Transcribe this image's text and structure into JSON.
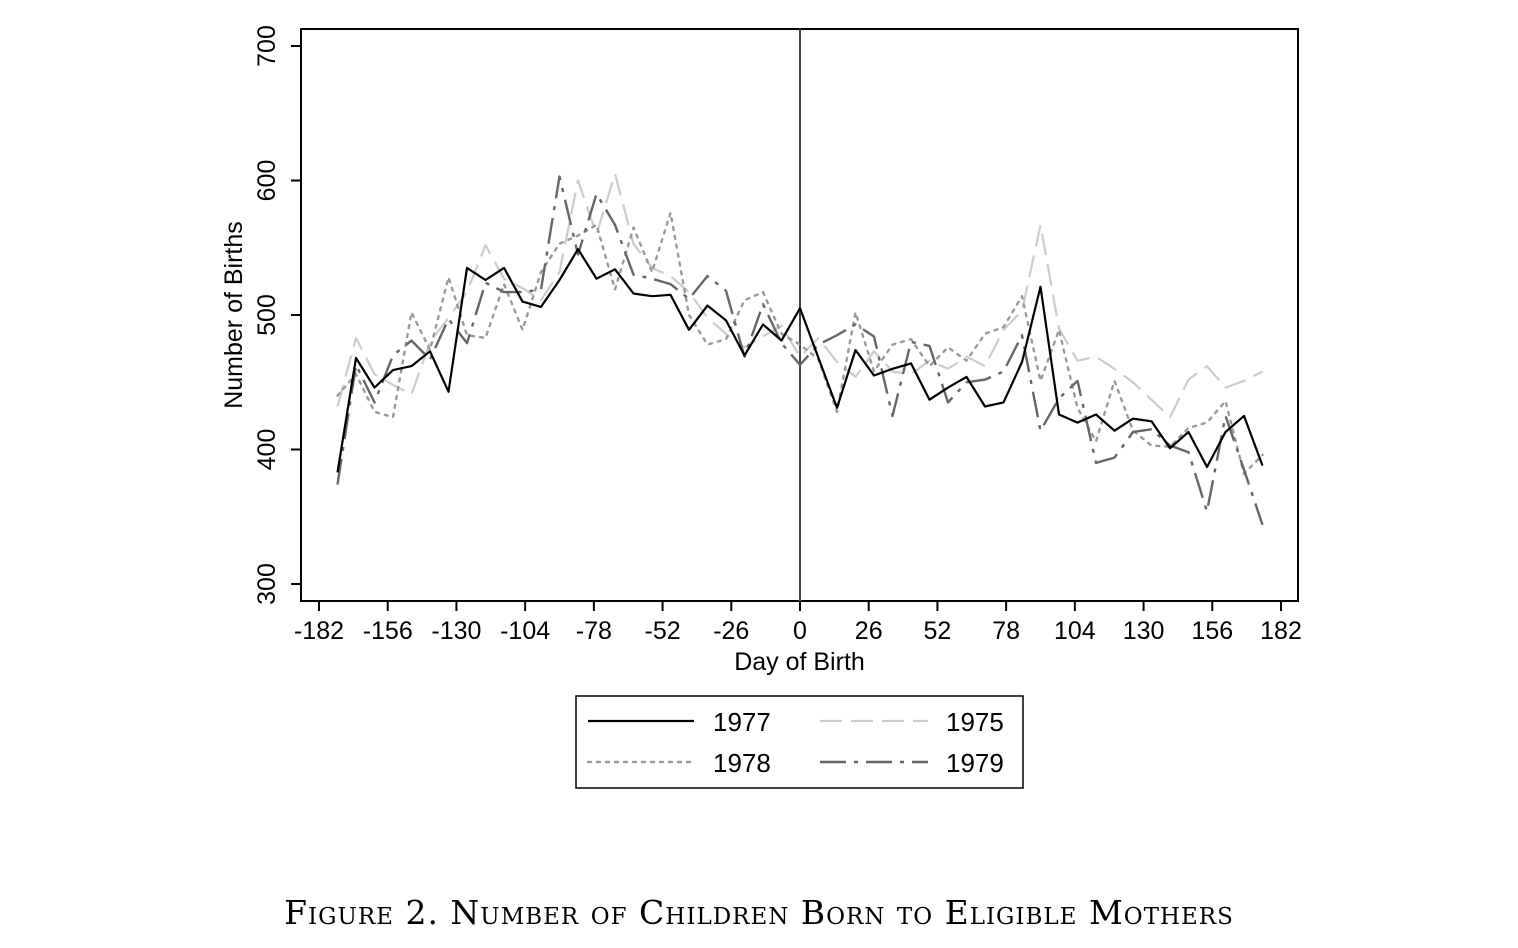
{
  "caption": "Figure 2. Number of Children Born to Eligible Mothers",
  "chart_data": {
    "type": "line",
    "title": "",
    "xlabel": "Day of Birth",
    "ylabel": "Number of Births",
    "xlim": [
      -182,
      182
    ],
    "ylim": [
      300,
      700
    ],
    "xticks": [
      -182,
      -156,
      -130,
      -104,
      -78,
      -52,
      -26,
      0,
      26,
      52,
      78,
      104,
      130,
      156,
      182
    ],
    "yticks": [
      300,
      400,
      500,
      600,
      700
    ],
    "vertical_line_at": 0,
    "grid": false,
    "legend_position": "bottom",
    "x": [
      -175,
      -168,
      -161,
      -154,
      -147,
      -140,
      -133,
      -126,
      -119,
      -112,
      -105,
      -98,
      -91,
      -84,
      -77,
      -70,
      -63,
      -56,
      -49,
      -42,
      -35,
      -28,
      -21,
      -14,
      -7,
      0,
      7,
      14,
      21,
      28,
      35,
      42,
      49,
      56,
      63,
      70,
      77,
      84,
      91,
      98,
      105,
      112,
      119,
      126,
      133,
      140,
      147,
      154,
      161,
      168,
      175
    ],
    "series": [
      {
        "name": "1977",
        "style": "solid",
        "color": "#000000",
        "width": 2.2,
        "values": [
          383,
          468,
          446,
          459,
          462,
          473,
          443,
          535,
          526,
          535,
          510,
          506,
          526,
          549,
          527,
          534,
          516,
          514,
          515,
          489,
          507,
          496,
          470,
          493,
          481,
          505,
          468,
          431,
          474,
          455,
          460,
          464,
          437,
          446,
          454,
          432,
          435,
          465,
          521,
          426,
          420,
          426,
          414,
          423,
          421,
          401,
          413,
          387,
          413,
          425,
          388
        ]
      },
      {
        "name": "1975",
        "style": "dashed",
        "color": "#cccccc",
        "width": 2.2,
        "values": [
          432,
          483,
          456,
          448,
          441,
          480,
          498,
          517,
          552,
          527,
          520,
          511,
          532,
          600,
          560,
          605,
          553,
          535,
          529,
          517,
          498,
          486,
          476,
          484,
          492,
          469,
          483,
          465,
          454,
          473,
          458,
          456,
          466,
          460,
          469,
          462,
          489,
          503,
          567,
          490,
          466,
          469,
          460,
          450,
          437,
          424,
          452,
          462,
          446,
          451,
          458
        ]
      },
      {
        "name": "1978",
        "style": "dotted",
        "color": "#999999",
        "width": 2.4,
        "values": [
          440,
          456,
          428,
          424,
          502,
          474,
          528,
          485,
          483,
          523,
          489,
          532,
          553,
          559,
          567,
          519,
          565,
          532,
          576,
          500,
          478,
          482,
          511,
          517,
          486,
          478,
          467,
          428,
          502,
          458,
          478,
          482,
          462,
          476,
          466,
          486,
          491,
          514,
          451,
          489,
          431,
          406,
          451,
          414,
          403,
          402,
          416,
          420,
          436,
          382,
          396
        ]
      },
      {
        "name": "1979",
        "style": "dashdot",
        "color": "#666666",
        "width": 2.4,
        "values": [
          374,
          463,
          435,
          470,
          481,
          467,
          497,
          479,
          524,
          517,
          517,
          519,
          603,
          545,
          590,
          567,
          530,
          527,
          523,
          512,
          529,
          518,
          469,
          508,
          479,
          463,
          478,
          485,
          493,
          484,
          425,
          480,
          477,
          435,
          450,
          452,
          458,
          485,
          414,
          438,
          451,
          390,
          394,
          413,
          415,
          403,
          398,
          354,
          425,
          385,
          344
        ]
      }
    ]
  }
}
